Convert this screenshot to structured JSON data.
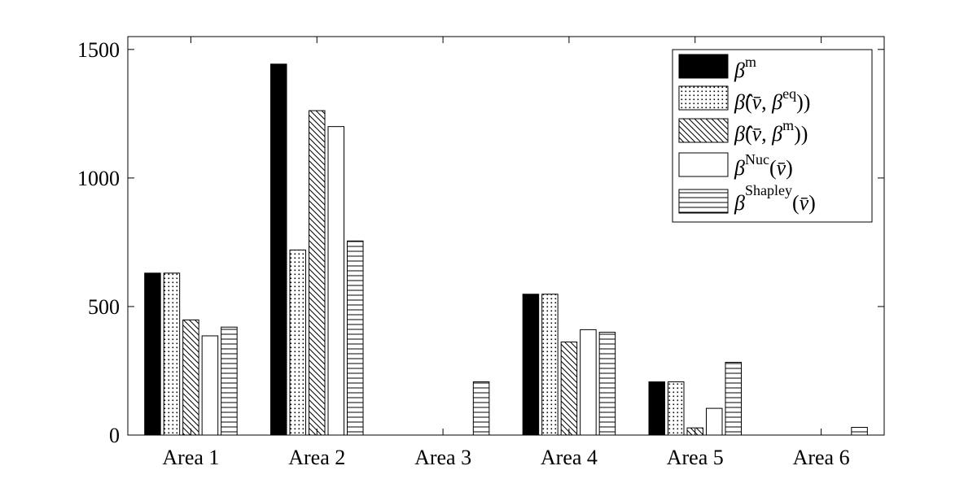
{
  "chart_data": {
    "type": "bar",
    "title": "",
    "xlabel": "",
    "ylabel": "",
    "categories": [
      "Area 1",
      "Area 2",
      "Area 3",
      "Area 4",
      "Area 5",
      "Area 6"
    ],
    "ylim": [
      0,
      1550
    ],
    "yticks": [
      0,
      500,
      1000,
      1500
    ],
    "grid": false,
    "legend_position": "top-right",
    "series": [
      {
        "name": "β^m",
        "pattern": "solid-black",
        "values": [
          630,
          1443,
          0,
          548,
          207,
          0
        ]
      },
      {
        "name": "β̂(v̄, β^eq)",
        "pattern": "dots",
        "values": [
          630,
          720,
          0,
          548,
          207,
          0
        ]
      },
      {
        "name": "β̂(v̄, β^m)",
        "pattern": "diagonal-hatch",
        "values": [
          448,
          1262,
          0,
          362,
          28,
          0
        ]
      },
      {
        "name": "β^Nuc(v̄)",
        "pattern": "white",
        "values": [
          386,
          1200,
          0,
          410,
          104,
          0
        ]
      },
      {
        "name": "β^Shapley(v̄)",
        "pattern": "horizontal-lines",
        "values": [
          420,
          755,
          207,
          400,
          283,
          30
        ]
      }
    ]
  }
}
